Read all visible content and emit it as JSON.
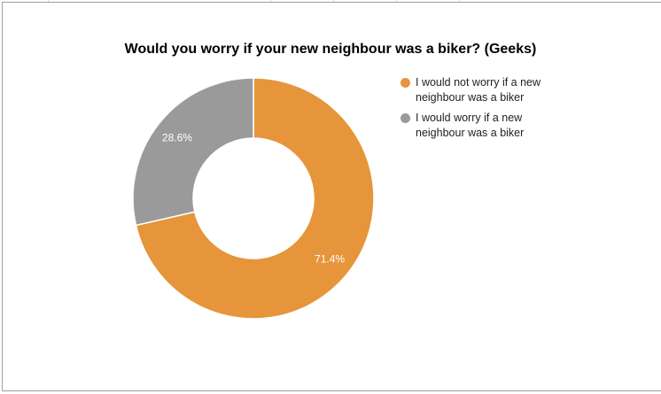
{
  "chart_data": {
    "type": "pie",
    "variant": "donut",
    "title": "Would you worry if your new neighbour was a biker? (Geeks)",
    "categories": [
      "I would not worry if a new neighbour was a biker",
      "I would worry if a new neighbour was a biker"
    ],
    "values": [
      71.4,
      28.6
    ],
    "value_labels": [
      "71.4%",
      "28.6%"
    ],
    "colors": [
      "#e6953b",
      "#9a9a9a"
    ],
    "legend_position": "right",
    "hole_ratio": 0.5
  },
  "legend": {
    "items": [
      {
        "label": "I would not worry if a new neighbour was a biker",
        "color": "#e6953b"
      },
      {
        "label": "I would worry if a new neighbour was a biker",
        "color": "#9a9a9a"
      }
    ]
  }
}
